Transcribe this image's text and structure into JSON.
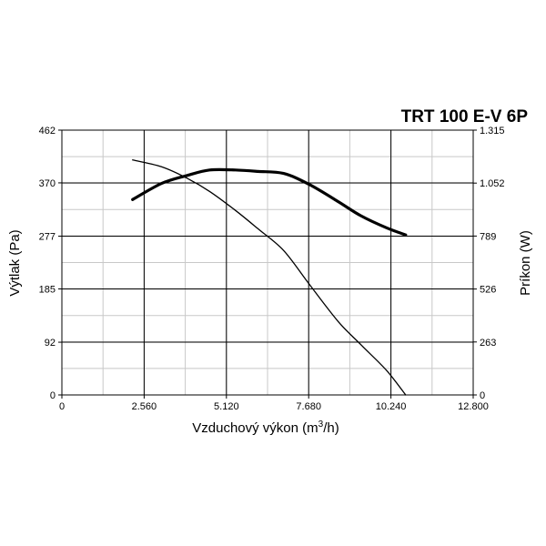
{
  "chart_data": {
    "type": "line",
    "title": "TRT 100 E-V 6P",
    "xlabel": "Vzduchový výkon (m",
    "xlabel_sup": "3",
    "xlabel_suffix": "/h)",
    "ylabel": "Výtlak (Pa)",
    "y2label": "Príkon (W)",
    "xlim": [
      0,
      12800
    ],
    "ylim": [
      0,
      462
    ],
    "y2lim": [
      0,
      1315
    ],
    "x_ticks": [
      {
        "value": 0,
        "label": "0"
      },
      {
        "value": 2560,
        "label": "2.560"
      },
      {
        "value": 5120,
        "label": "5.120"
      },
      {
        "value": 7680,
        "label": "7.680"
      },
      {
        "value": 10240,
        "label": "10.240"
      },
      {
        "value": 12800,
        "label": "12.800"
      }
    ],
    "y_ticks": [
      {
        "value": 0,
        "label": "0"
      },
      {
        "value": 92,
        "label": "92"
      },
      {
        "value": 185,
        "label": "185"
      },
      {
        "value": 277,
        "label": "277"
      },
      {
        "value": 370,
        "label": "370"
      },
      {
        "value": 462,
        "label": "462"
      }
    ],
    "y2_ticks": [
      {
        "value": 0,
        "label": "0"
      },
      {
        "value": 263,
        "label": "263"
      },
      {
        "value": 526,
        "label": "526"
      },
      {
        "value": 789,
        "label": "789"
      },
      {
        "value": 1052,
        "label": "1.052"
      },
      {
        "value": 1315,
        "label": "1.315"
      }
    ],
    "x_minor_step": 1280,
    "y_minor_step": 46.2,
    "grid": true,
    "series": [
      {
        "axis": "left",
        "stroke": "thin",
        "x": [
          2200,
          3100,
          3900,
          4600,
          5400,
          6100,
          6900,
          7700,
          8600,
          9300,
          10100,
          10700
        ],
        "y": [
          410,
          398,
          378,
          355,
          322,
          290,
          252,
          193,
          128,
          88,
          43,
          0
        ]
      },
      {
        "axis": "right",
        "stroke": "thick",
        "x": [
          2200,
          3100,
          3900,
          4600,
          5400,
          6100,
          6900,
          7700,
          8600,
          9300,
          10100,
          10700
        ],
        "y": [
          970,
          1050,
          1090,
          1117,
          1117,
          1110,
          1100,
          1045,
          960,
          890,
          830,
          795
        ]
      }
    ],
    "colors": {
      "line": "#000000",
      "grid": "#000000",
      "minor_grid": "#c8c8c8"
    }
  }
}
